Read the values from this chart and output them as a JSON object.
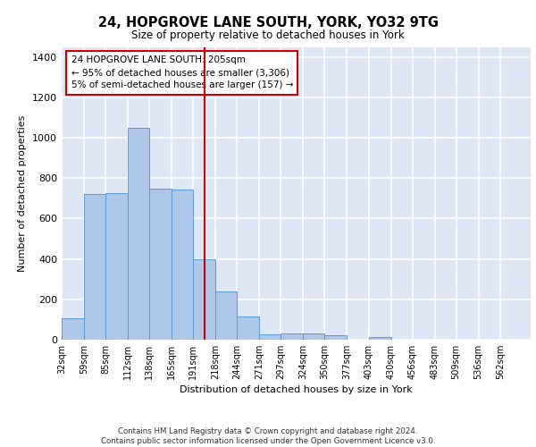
{
  "title": "24, HOPGROVE LANE SOUTH, YORK, YO32 9TG",
  "subtitle": "Size of property relative to detached houses in York",
  "xlabel": "Distribution of detached houses by size in York",
  "ylabel": "Number of detached properties",
  "footnote1": "Contains HM Land Registry data © Crown copyright and database right 2024.",
  "footnote2": "Contains public sector information licensed under the Open Government Licence v3.0.",
  "bar_edges": [
    32,
    59,
    85,
    112,
    138,
    165,
    191,
    218,
    244,
    271,
    297,
    324,
    350,
    377,
    403,
    430,
    456,
    483,
    509,
    536,
    562
  ],
  "bar_heights": [
    107,
    722,
    727,
    1050,
    748,
    746,
    400,
    237,
    115,
    27,
    30,
    30,
    22,
    0,
    14,
    0,
    0,
    0,
    0,
    0,
    0
  ],
  "bar_color": "#aec6e8",
  "bar_edge_color": "#5b9bd5",
  "background_color": "#dce6f5",
  "grid_color": "#ffffff",
  "vline_x": 205,
  "vline_color": "#cc0000",
  "annotation_text": "24 HOPGROVE LANE SOUTH: 205sqm\n← 95% of detached houses are smaller (3,306)\n5% of semi-detached houses are larger (157) →",
  "annotation_box_color": "#cc0000",
  "ylim": [
    0,
    1450
  ],
  "yticks": [
    0,
    200,
    400,
    600,
    800,
    1000,
    1200,
    1400
  ],
  "figsize": [
    6.0,
    5.0
  ],
  "dpi": 100
}
